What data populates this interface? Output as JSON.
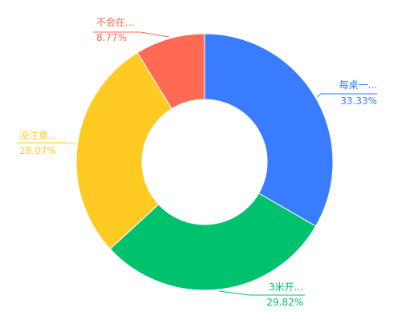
{
  "chart_data": {
    "type": "pie",
    "style": "donut",
    "title": "",
    "slices": [
      {
        "label": "每桌一...",
        "percent_text": "33.33%",
        "value": 33.33,
        "color": "#3a7cff"
      },
      {
        "label": "3米开...",
        "percent_text": "29.82%",
        "value": 29.82,
        "color": "#00c26e"
      },
      {
        "label": "没注意...",
        "percent_text": "28.07%",
        "value": 28.07,
        "color": "#ffca22"
      },
      {
        "label": "不会在...",
        "percent_text": "8.77%",
        "value": 8.77,
        "color": "#ff6a55"
      }
    ],
    "legend": "none",
    "start_angle": "12 o'clock",
    "direction": "clockwise"
  }
}
